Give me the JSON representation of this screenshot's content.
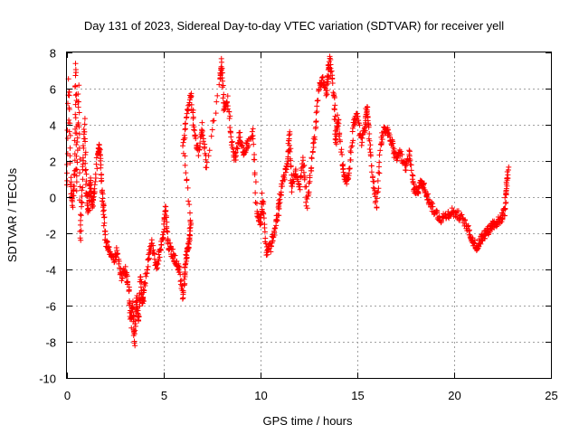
{
  "chart_data": {
    "type": "scatter",
    "title": "Day 131 of 2023, Sidereal Day-to-day VTEC variation (SDTVAR) for receiver yell",
    "xlabel": "GPS time / hours",
    "ylabel": "SDTVAR / TECUs",
    "xlim": [
      0,
      25
    ],
    "ylim": [
      -10,
      8
    ],
    "xticks": [
      "0",
      "5",
      "10",
      "15",
      "20",
      "25"
    ],
    "yticks": [
      "-10",
      "-8",
      "-6",
      "-4",
      "-2",
      "0",
      "2",
      "4",
      "6",
      "8"
    ],
    "grid": true,
    "marker": "plus",
    "color": "#ff0000",
    "series": [
      {
        "name": "SDTVAR",
        "trend": [
          [
            0.0,
            0.5
          ],
          [
            0.1,
            6.5
          ],
          [
            0.2,
            0.8
          ],
          [
            0.3,
            -0.5
          ],
          [
            0.4,
            1.5
          ],
          [
            0.45,
            7.5
          ],
          [
            0.5,
            0.5
          ],
          [
            0.6,
            6.2
          ],
          [
            0.7,
            -2.5
          ],
          [
            0.8,
            1.0
          ],
          [
            0.9,
            4.2
          ],
          [
            1.0,
            0.5
          ],
          [
            1.1,
            -0.8
          ],
          [
            1.2,
            1.0
          ],
          [
            1.3,
            -0.5
          ],
          [
            1.4,
            0.3
          ],
          [
            1.6,
            2.5
          ],
          [
            1.7,
            2.8
          ],
          [
            1.8,
            0.5
          ],
          [
            1.9,
            -1.0
          ],
          [
            2.0,
            -2.5
          ],
          [
            2.2,
            -3.0
          ],
          [
            2.4,
            -3.5
          ],
          [
            2.6,
            -3.0
          ],
          [
            2.8,
            -4.5
          ],
          [
            3.0,
            -4.0
          ],
          [
            3.2,
            -5.0
          ],
          [
            3.3,
            -7.0
          ],
          [
            3.4,
            -6.0
          ],
          [
            3.5,
            -8.0
          ],
          [
            3.6,
            -5.5
          ],
          [
            3.7,
            -7.0
          ],
          [
            3.8,
            -4.5
          ],
          [
            3.9,
            -6.0
          ],
          [
            4.0,
            -5.0
          ],
          [
            4.2,
            -3.5
          ],
          [
            4.4,
            -2.5
          ],
          [
            4.6,
            -4.0
          ],
          [
            4.8,
            -3.0
          ],
          [
            5.0,
            -2.0
          ],
          [
            5.1,
            -0.5
          ],
          [
            5.2,
            -2.5
          ],
          [
            5.4,
            -3.0
          ],
          [
            5.6,
            -3.5
          ],
          [
            5.8,
            -4.0
          ],
          [
            6.0,
            -5.5
          ],
          [
            6.1,
            -4.0
          ],
          [
            6.2,
            -3.0
          ],
          [
            6.3,
            -2.5
          ],
          [
            6.4,
            -1.5
          ],
          [
            6.0,
            3.0
          ],
          [
            6.2,
            4.5
          ],
          [
            6.4,
            5.8
          ],
          [
            6.6,
            3.5
          ],
          [
            6.8,
            2.5
          ],
          [
            7.0,
            4.0
          ],
          [
            7.2,
            1.5
          ],
          [
            7.9,
            6.5
          ],
          [
            8.0,
            7.5
          ],
          [
            8.1,
            4.8
          ],
          [
            8.3,
            5.5
          ],
          [
            8.5,
            3.0
          ],
          [
            8.7,
            2.0
          ],
          [
            8.9,
            3.5
          ],
          [
            9.1,
            2.5
          ],
          [
            9.3,
            2.8
          ],
          [
            9.6,
            3.7
          ],
          [
            9.8,
            -0.8
          ],
          [
            10.0,
            -1.5
          ],
          [
            10.1,
            0.0
          ],
          [
            10.3,
            -3.0
          ],
          [
            10.5,
            -2.8
          ],
          [
            10.7,
            -2.0
          ],
          [
            10.9,
            -1.0
          ],
          [
            11.0,
            0.0
          ],
          [
            11.2,
            1.0
          ],
          [
            11.4,
            2.0
          ],
          [
            11.5,
            3.5
          ],
          [
            11.6,
            0.5
          ],
          [
            11.8,
            1.5
          ],
          [
            12.0,
            0.5
          ],
          [
            12.2,
            2.0
          ],
          [
            12.4,
            -0.5
          ],
          [
            12.6,
            1.5
          ],
          [
            12.8,
            3.5
          ],
          [
            13.0,
            6.0
          ],
          [
            13.2,
            6.5
          ],
          [
            13.4,
            5.8
          ],
          [
            13.5,
            7.0
          ],
          [
            13.6,
            7.6
          ],
          [
            13.8,
            5.5
          ],
          [
            13.9,
            3.0
          ],
          [
            14.0,
            4.5
          ],
          [
            14.2,
            2.0
          ],
          [
            14.4,
            0.8
          ],
          [
            14.6,
            1.5
          ],
          [
            14.8,
            4.0
          ],
          [
            15.0,
            4.5
          ],
          [
            15.2,
            3.0
          ],
          [
            15.4,
            4.0
          ],
          [
            15.5,
            5.0
          ],
          [
            15.6,
            3.5
          ],
          [
            15.8,
            1.0
          ],
          [
            16.0,
            -0.5
          ],
          [
            16.2,
            3.0
          ],
          [
            16.4,
            3.8
          ],
          [
            16.6,
            3.5
          ],
          [
            16.8,
            3.0
          ],
          [
            17.0,
            2.0
          ],
          [
            17.2,
            2.5
          ],
          [
            17.5,
            1.5
          ],
          [
            17.7,
            2.5
          ],
          [
            17.9,
            0.5
          ],
          [
            18.1,
            0.3
          ],
          [
            18.3,
            0.8
          ],
          [
            18.5,
            0.5
          ],
          [
            18.7,
            -0.2
          ],
          [
            19.0,
            -0.8
          ],
          [
            19.3,
            -1.2
          ],
          [
            19.6,
            -1.0
          ],
          [
            19.9,
            -0.8
          ],
          [
            20.2,
            -1.0
          ],
          [
            20.5,
            -1.3
          ],
          [
            20.8,
            -2.0
          ],
          [
            21.0,
            -2.5
          ],
          [
            21.2,
            -2.8
          ],
          [
            21.4,
            -2.3
          ],
          [
            21.6,
            -2.0
          ],
          [
            21.8,
            -1.8
          ],
          [
            22.0,
            -1.5
          ],
          [
            22.2,
            -1.4
          ],
          [
            22.4,
            -1.2
          ],
          [
            22.6,
            -0.8
          ],
          [
            22.7,
            0.5
          ],
          [
            22.8,
            1.5
          ]
        ]
      }
    ]
  }
}
